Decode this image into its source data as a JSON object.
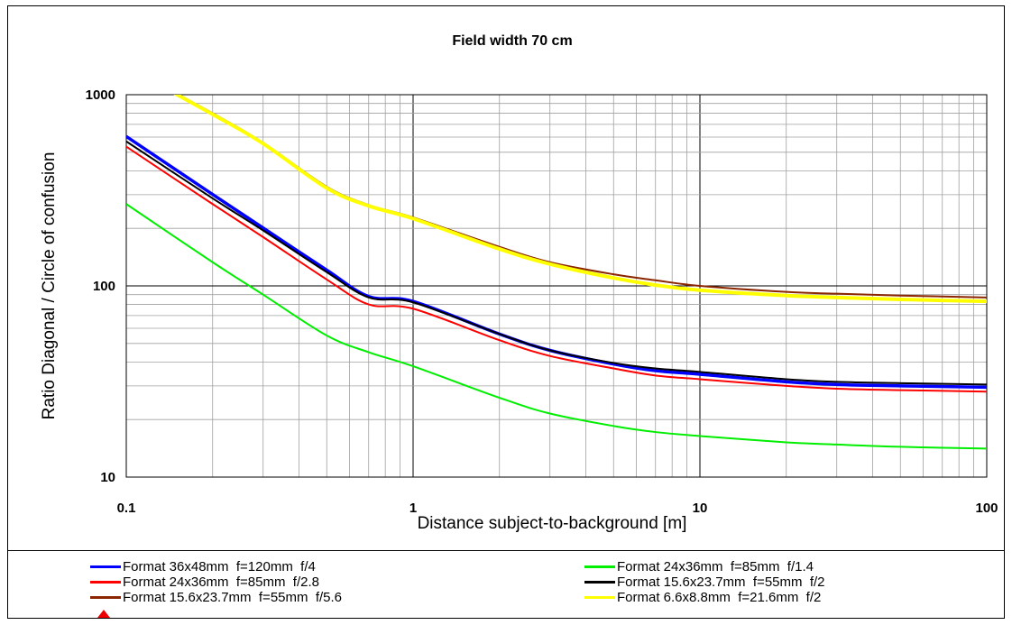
{
  "chart_data": {
    "type": "line",
    "title": "Field width  70 cm",
    "xlabel": "Distance subject-to-background [m]",
    "ylabel": "Ratio Diagonal / Circle of confusion",
    "x_scale": "log",
    "y_scale": "log",
    "xlim": [
      0.1,
      100
    ],
    "ylim": [
      10,
      1000
    ],
    "x_ticks": [
      "0.1",
      "1",
      "10",
      "100"
    ],
    "y_ticks": [
      "10",
      "100",
      "1000"
    ],
    "grid": true,
    "legend_position": "bottom",
    "x": [
      0.1,
      0.2,
      0.3,
      0.5,
      0.7,
      1,
      2,
      3,
      5,
      7,
      10,
      20,
      30,
      50,
      100
    ],
    "series": [
      {
        "name": "Format 36x48mm  f=120mm  f/4",
        "color": "#0000ff",
        "values": [
          605,
          301,
          201,
          121,
          88,
          83,
          56,
          46,
          39,
          36,
          34.5,
          31.5,
          30.5,
          30,
          29.5
        ]
      },
      {
        "name": "Format 24x36mm  f=85mm  f/1.4",
        "color": "#00ee00",
        "values": [
          268,
          133,
          90,
          55,
          45,
          38,
          26,
          21.5,
          18.5,
          17.2,
          16.4,
          15.2,
          14.8,
          14.4,
          14.1
        ]
      },
      {
        "name": "Format 24x36mm  f=85mm  f/2.8",
        "color": "#ff0000",
        "values": [
          535,
          268,
          180,
          108,
          80,
          76,
          52,
          43,
          37,
          34,
          32.5,
          30,
          29,
          28.5,
          28
        ]
      },
      {
        "name": "Format 15.6x23.7mm  f=55mm  f/2",
        "color": "#000000",
        "values": [
          570,
          287,
          195,
          118,
          87,
          82,
          56,
          46,
          39.5,
          37,
          35.5,
          32.5,
          31.5,
          31,
          30.5
        ]
      },
      {
        "name": "Format 15.6x23.7mm  f=55mm  f/5.6",
        "color": "#8b2500",
        "values": [
          1400,
          800,
          560,
          330,
          265,
          228,
          160,
          133,
          115,
          107,
          100,
          93,
          91,
          89,
          87
        ]
      },
      {
        "name": "Format 6.6x8.8mm  f=21.6mm  f/2",
        "color": "#ffff00",
        "values": [
          1400,
          790,
          555,
          325,
          262,
          225,
          156,
          130,
          110,
          101,
          95,
          89,
          87,
          85,
          83
        ]
      }
    ]
  }
}
